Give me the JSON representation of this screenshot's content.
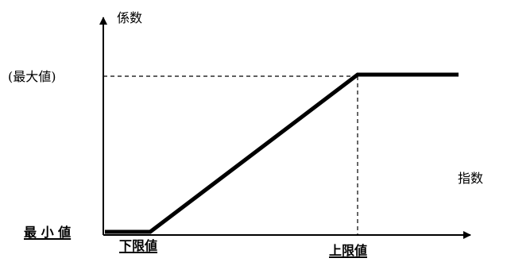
{
  "labels": {
    "y_axis": "係数",
    "x_axis": "指数",
    "max_value": "(最大値)",
    "min_value": "最 小 値",
    "lower_limit": "下限値",
    "upper_limit": "上限値"
  },
  "colors": {
    "line": "#000000",
    "background": "#ffffff"
  }
}
